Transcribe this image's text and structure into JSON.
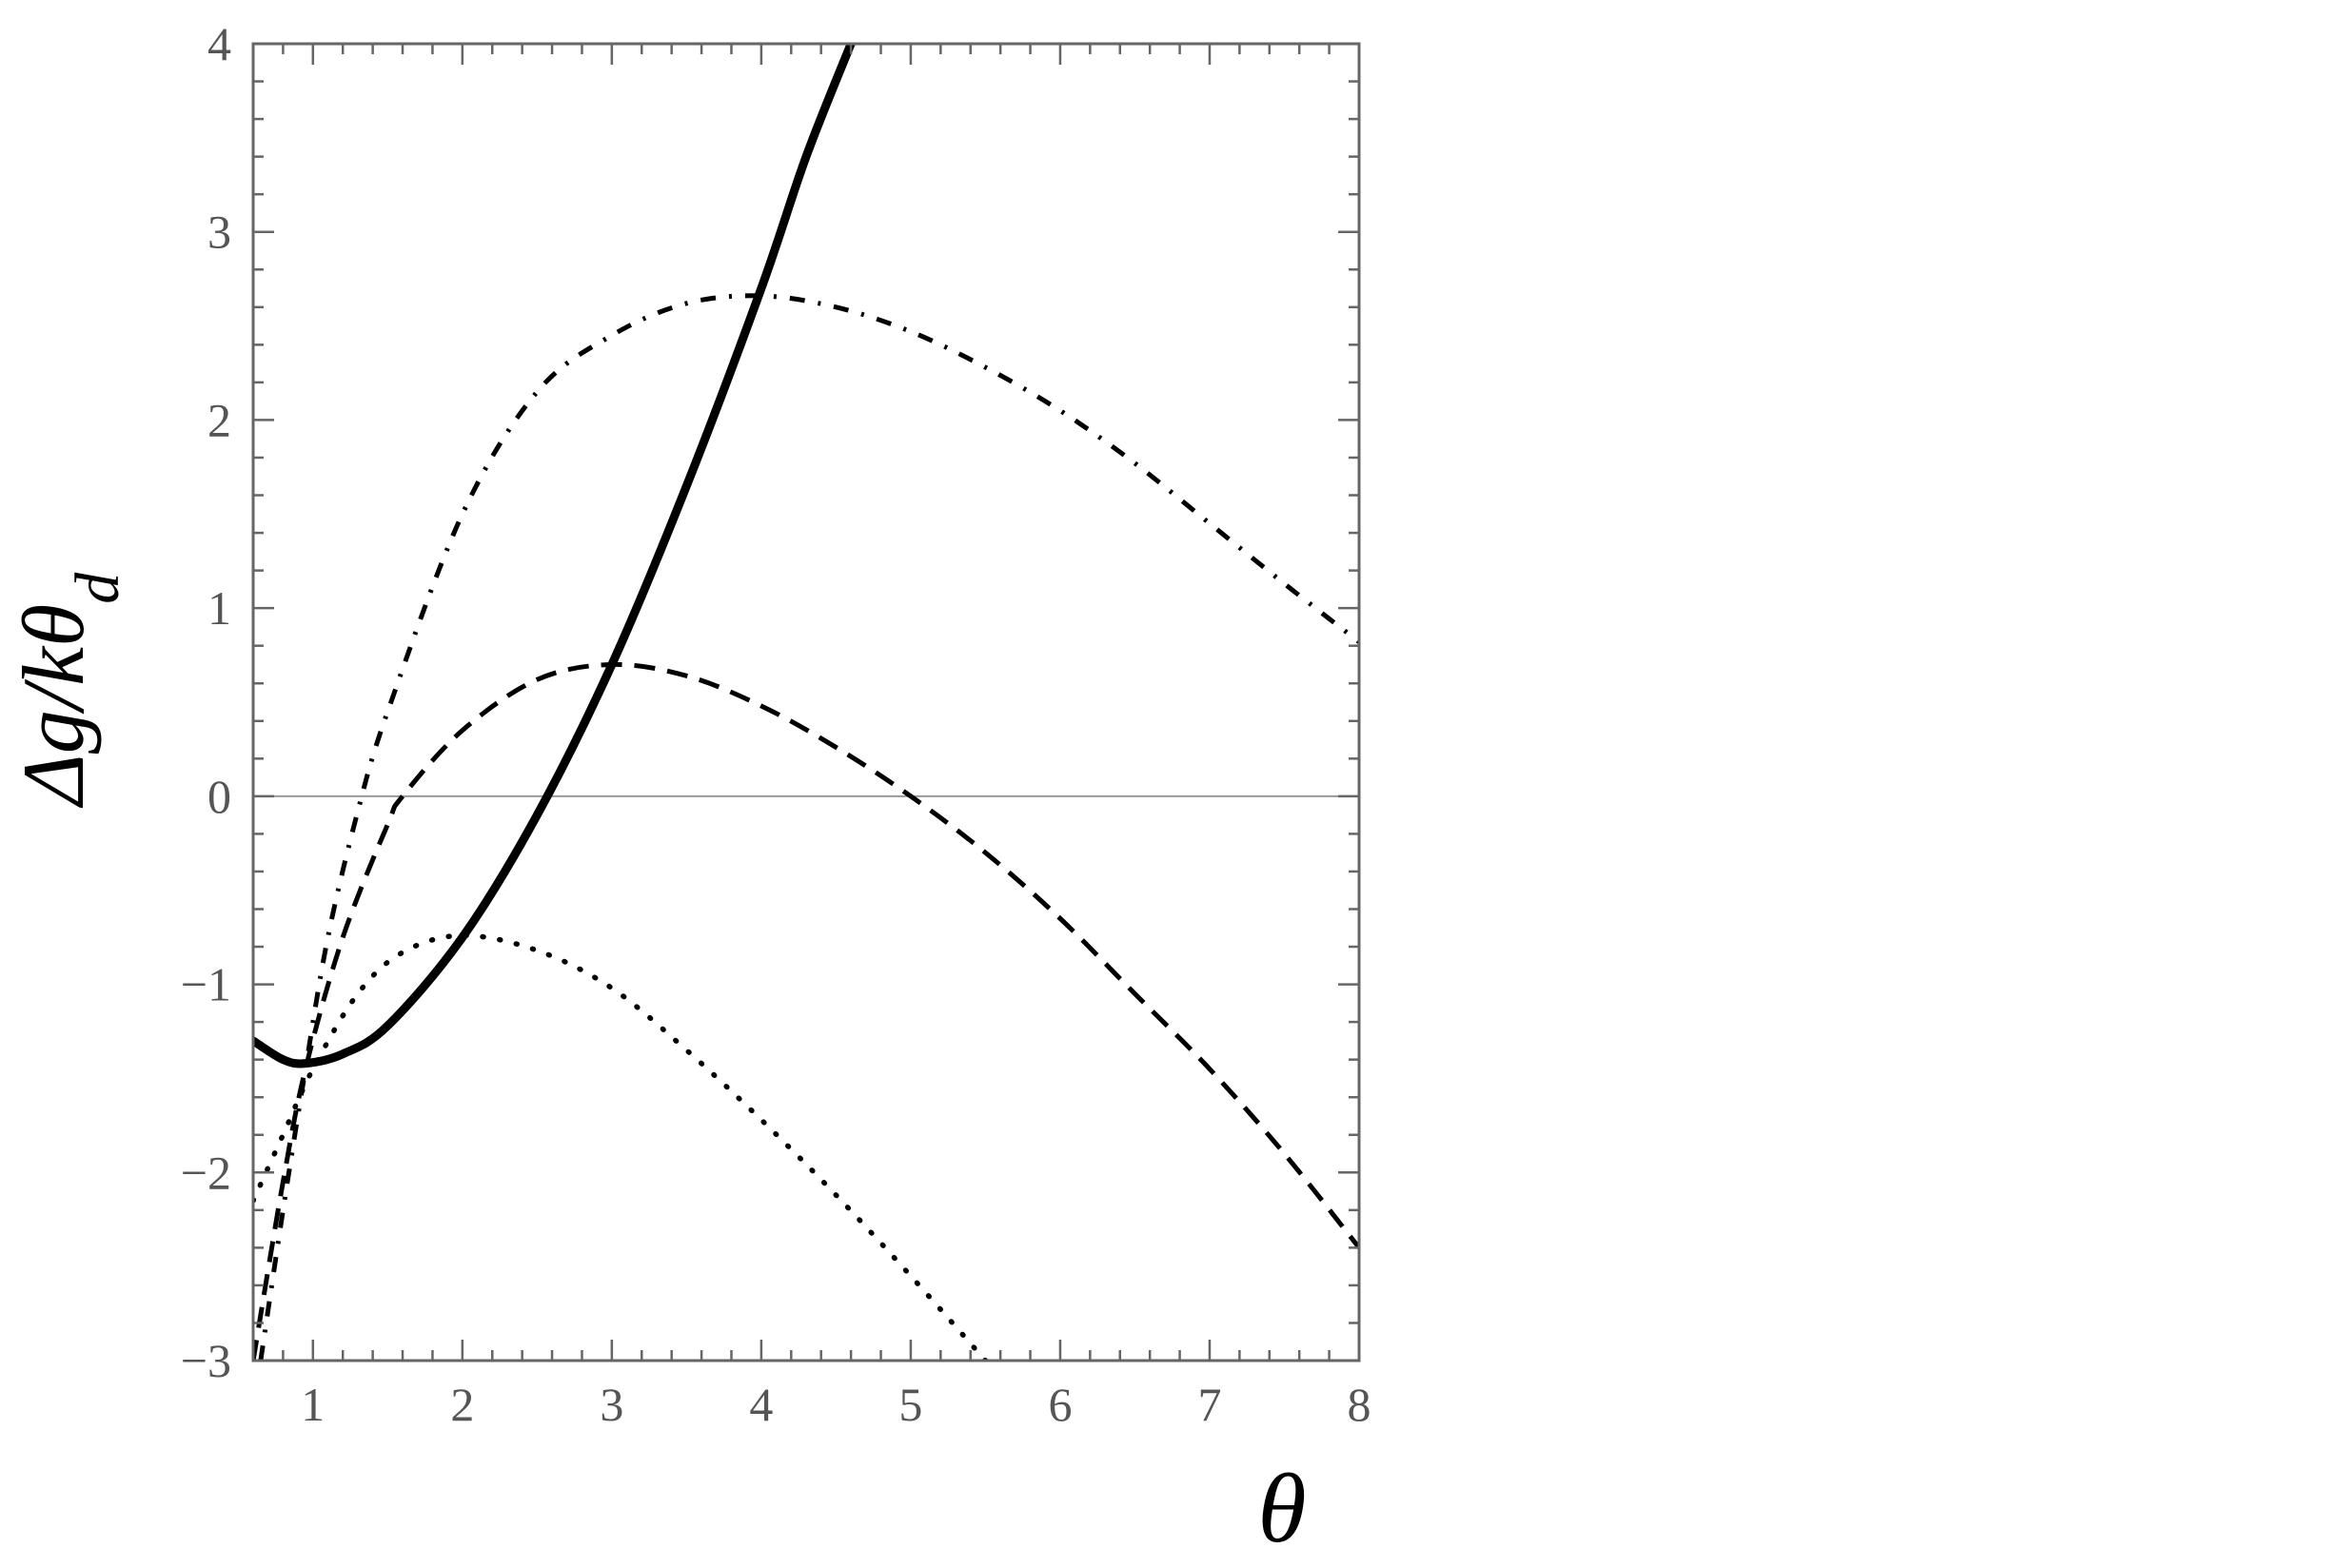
{
  "chart_data": {
    "type": "line",
    "title": "",
    "xlabel": "θ",
    "ylabel_main": "Δg/kθ",
    "ylabel_sub": "d",
    "xlim": [
      0.6,
      8
    ],
    "ylim": [
      -3,
      4
    ],
    "grid": false,
    "legend": "none",
    "x_ticks": [
      1,
      2,
      3,
      4,
      5,
      6,
      7,
      8
    ],
    "y_ticks": [
      -3,
      -2,
      -1,
      0,
      1,
      2,
      3,
      4
    ],
    "x_tick_labels": [
      "1",
      "2",
      "3",
      "4",
      "5",
      "6",
      "7",
      "8"
    ],
    "y_tick_labels": [
      "−3",
      "−2",
      "−1",
      "0",
      "1",
      "2",
      "3",
      "4"
    ],
    "zero_line": true,
    "colors": {
      "series": "#000000",
      "frame": "#666666",
      "ticks": "#555555",
      "zero_line": "#999999"
    },
    "series": [
      {
        "style": "solid",
        "points": [
          [
            0.6,
            -1.3
          ],
          [
            0.8,
            -1.4
          ],
          [
            0.95,
            -1.42
          ],
          [
            1.2,
            -1.37
          ],
          [
            1.5,
            -1.22
          ],
          [
            2.0,
            -0.75
          ],
          [
            2.5,
            -0.1
          ],
          [
            3.0,
            0.7
          ],
          [
            3.5,
            1.65
          ],
          [
            4.0,
            2.7
          ],
          [
            4.3,
            3.4
          ],
          [
            4.6,
            4.0
          ]
        ]
      },
      {
        "style": "dashdot",
        "points": [
          [
            0.65,
            -3.0
          ],
          [
            0.8,
            -2.2
          ],
          [
            0.95,
            -1.45
          ],
          [
            1.1,
            -0.75
          ],
          [
            1.3,
            -0.08
          ],
          [
            1.5,
            0.45
          ],
          [
            2.0,
            1.5
          ],
          [
            2.5,
            2.15
          ],
          [
            3.0,
            2.45
          ],
          [
            3.5,
            2.62
          ],
          [
            4.0,
            2.66
          ],
          [
            4.5,
            2.6
          ],
          [
            5.0,
            2.47
          ],
          [
            5.5,
            2.28
          ],
          [
            6.0,
            2.05
          ],
          [
            6.5,
            1.77
          ],
          [
            7.0,
            1.45
          ],
          [
            7.5,
            1.13
          ],
          [
            8.0,
            0.82
          ]
        ]
      },
      {
        "style": "dashed",
        "points": [
          [
            0.6,
            -3.0
          ],
          [
            0.8,
            -2.05
          ],
          [
            0.95,
            -1.45
          ],
          [
            1.2,
            -0.75
          ],
          [
            1.5,
            -0.15
          ],
          [
            1.6,
            0.0
          ],
          [
            2.0,
            0.35
          ],
          [
            2.5,
            0.62
          ],
          [
            3.0,
            0.7
          ],
          [
            3.5,
            0.64
          ],
          [
            4.0,
            0.48
          ],
          [
            4.5,
            0.26
          ],
          [
            5.0,
            0.0
          ],
          [
            5.5,
            -0.3
          ],
          [
            6.0,
            -0.65
          ],
          [
            6.5,
            -1.05
          ],
          [
            7.0,
            -1.45
          ],
          [
            7.5,
            -1.9
          ],
          [
            8.0,
            -2.4
          ]
        ]
      },
      {
        "style": "dotted",
        "points": [
          [
            0.6,
            -2.15
          ],
          [
            0.8,
            -1.8
          ],
          [
            1.0,
            -1.45
          ],
          [
            1.3,
            -1.05
          ],
          [
            1.6,
            -0.83
          ],
          [
            2.0,
            -0.74
          ],
          [
            2.5,
            -0.82
          ],
          [
            3.0,
            -1.02
          ],
          [
            3.5,
            -1.35
          ],
          [
            4.0,
            -1.72
          ],
          [
            4.5,
            -2.12
          ],
          [
            5.0,
            -2.55
          ],
          [
            5.5,
            -3.0
          ]
        ]
      }
    ]
  }
}
